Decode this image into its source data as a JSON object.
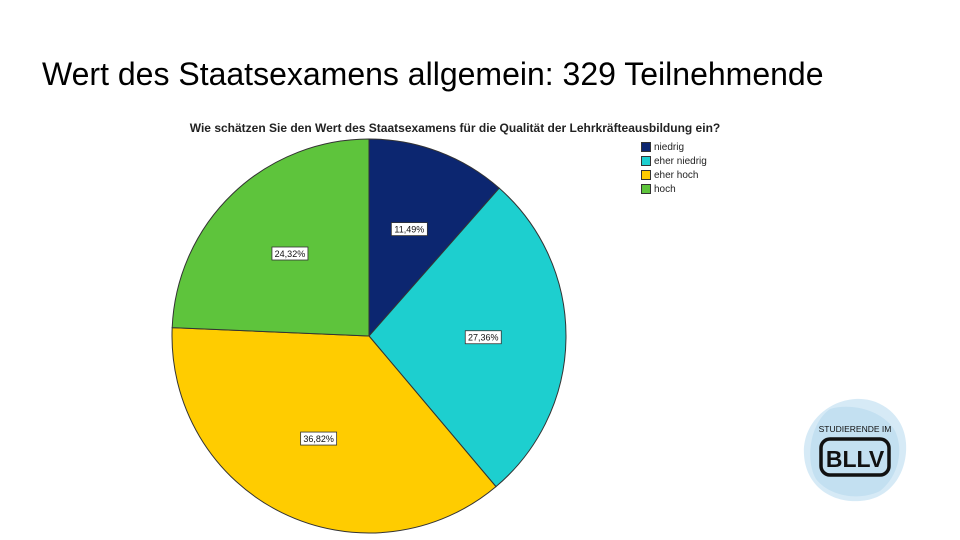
{
  "slide": {
    "title": "Wert des Staatsexamens allgemein: 329 Teilnehmende"
  },
  "chart_data": {
    "type": "pie",
    "title": "Wie schätzen Sie den Wert des Staatsexamens für die Qualität der Lehrkräfteausbildung ein?",
    "categories": [
      "niedrig",
      "eher niedrig",
      "eher hoch",
      "hoch"
    ],
    "values": [
      11.49,
      27.36,
      36.82,
      24.32
    ],
    "value_labels": [
      "11,49%",
      "27,36%",
      "36,82%",
      "24,32%"
    ],
    "colors": [
      "#0c2670",
      "#1dcfcf",
      "#ffcc00",
      "#5ec43c"
    ],
    "legend_position": "top-right"
  },
  "logo": {
    "top_text": "STUDIERENDE IM",
    "main_text": "BLLV"
  }
}
